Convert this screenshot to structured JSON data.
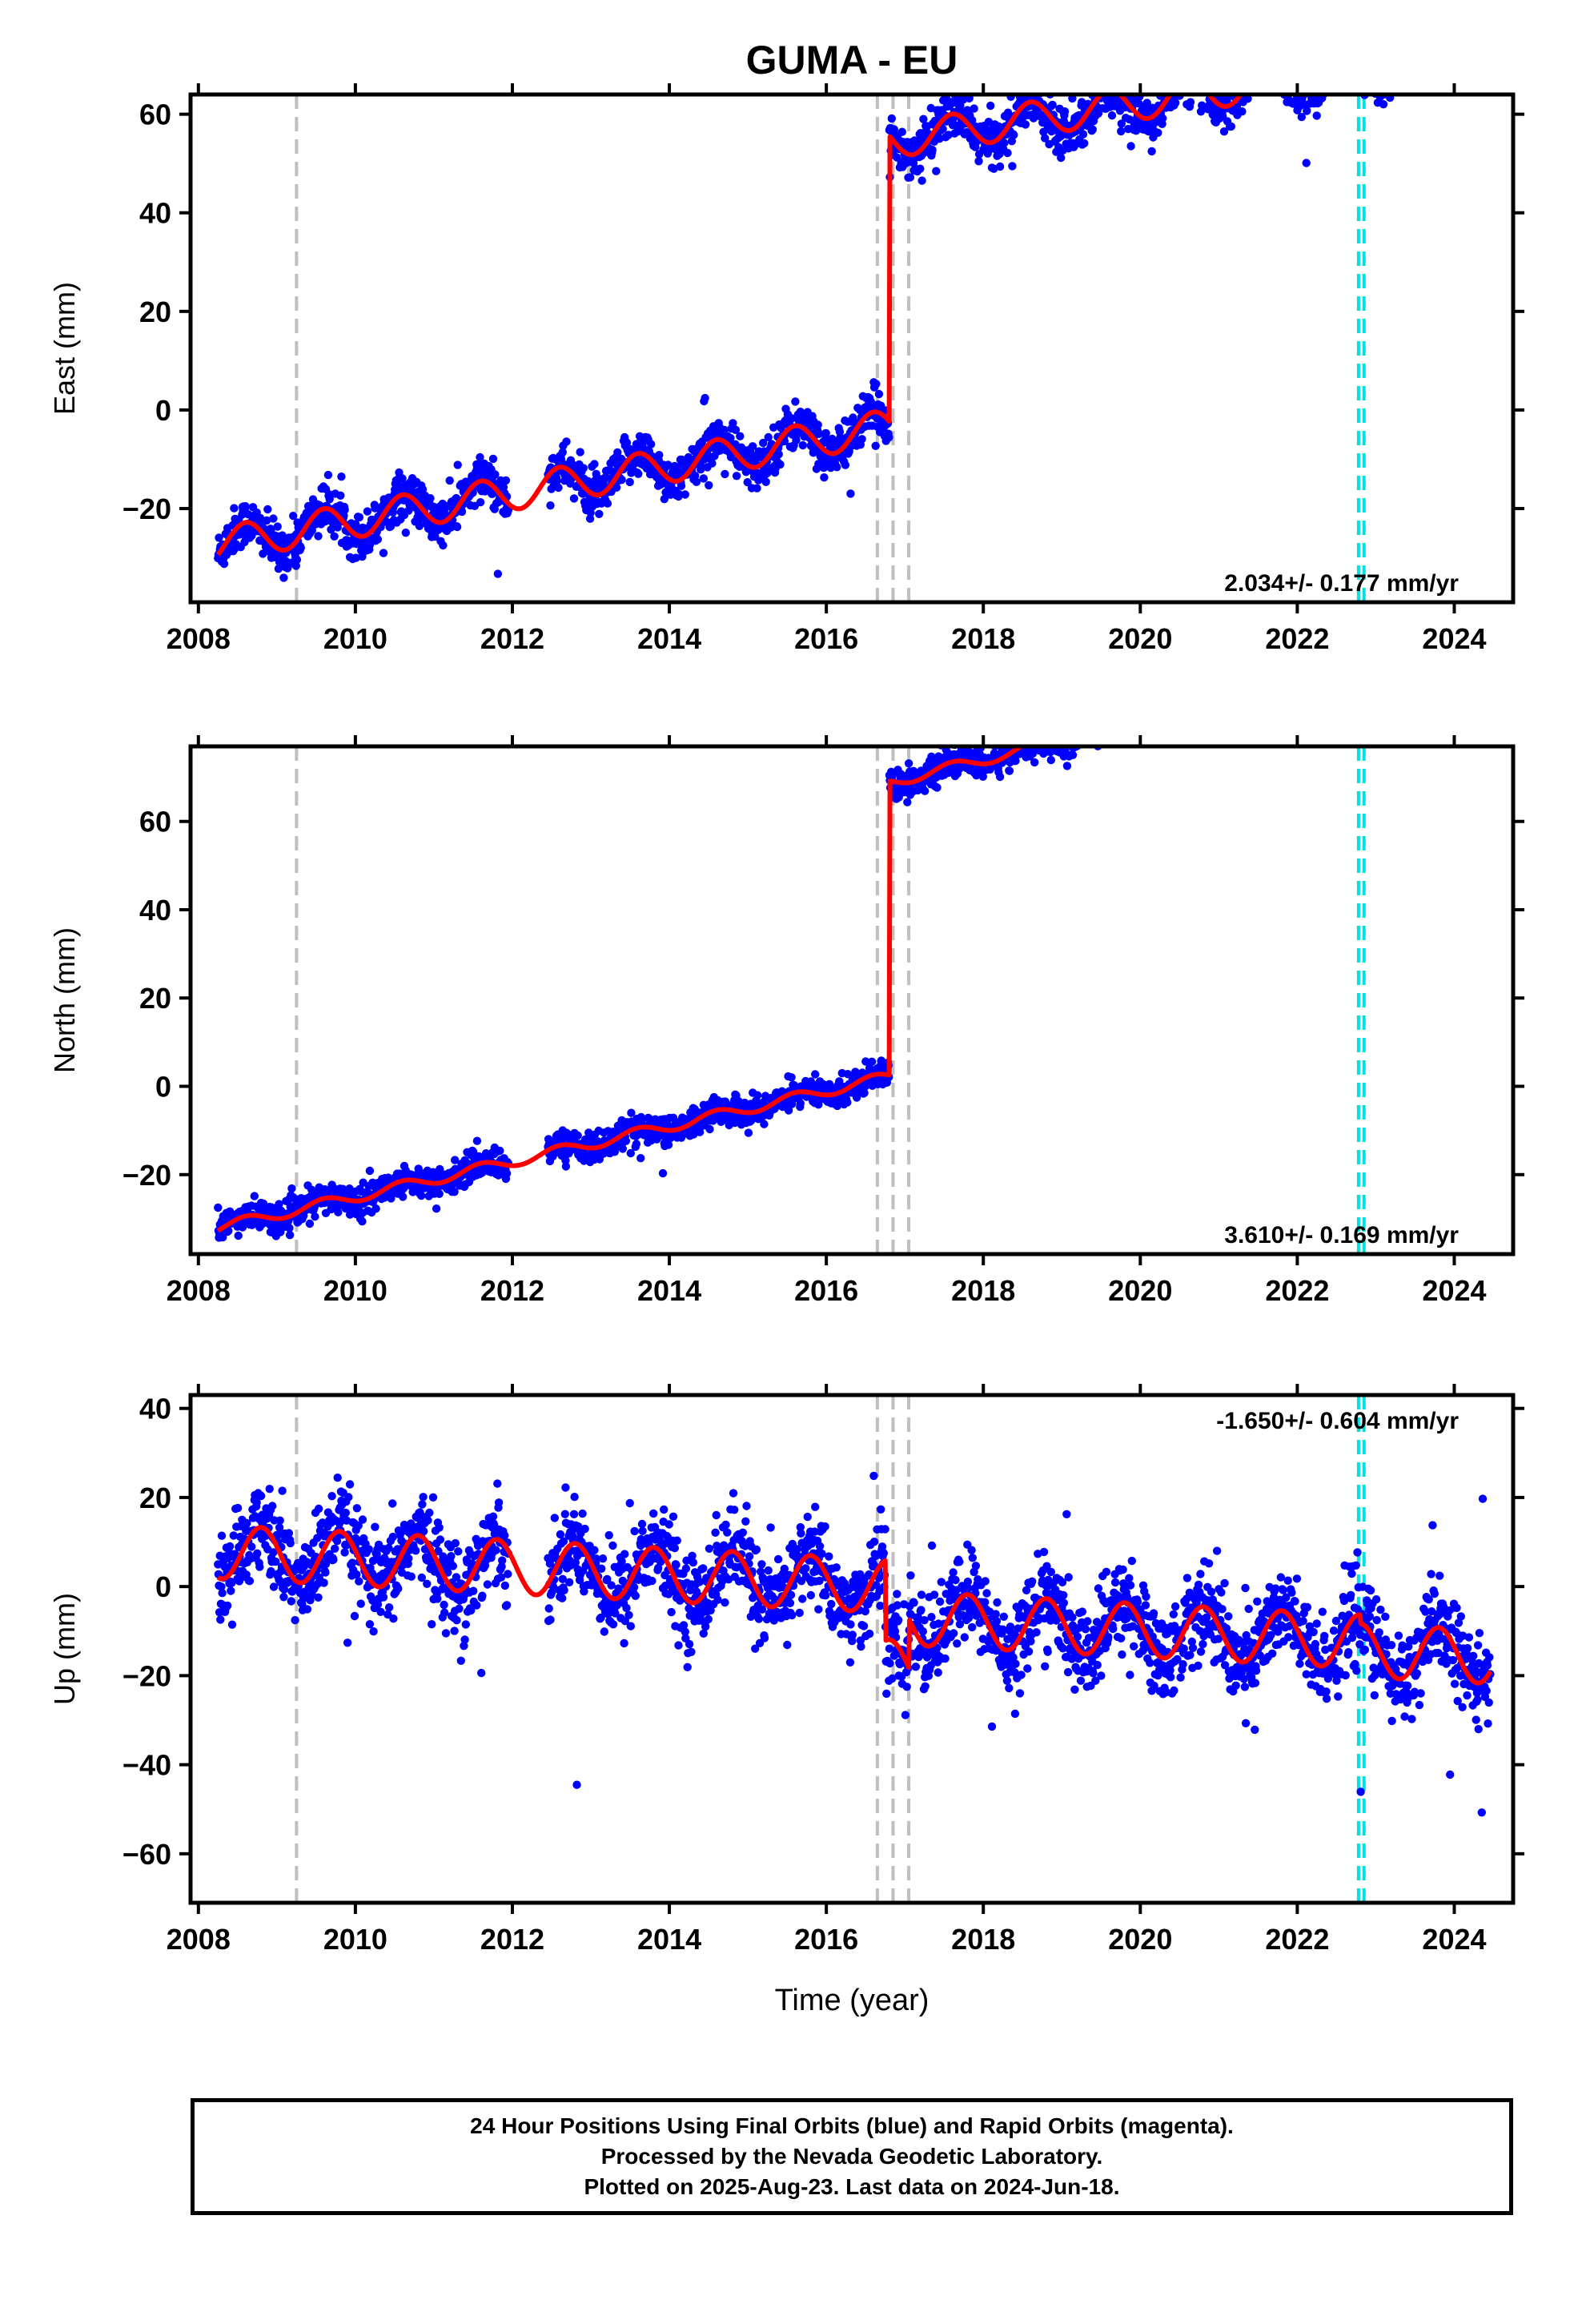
{
  "title": "GUMA - EU",
  "xlabel": "Time (year)",
  "colors": {
    "points": "#0000ff",
    "model": "#ff0000",
    "event_gray": "#bfbfbf",
    "event_cyan": "#00e0e0"
  },
  "chart_data": [
    {
      "type": "scatter",
      "panel": "east",
      "ylabel": "East (mm)",
      "rate_label": "2.034+/- 0.177 mm/yr",
      "xlim": [
        2007.9,
        2024.75
      ],
      "ylim": [
        -39,
        64
      ],
      "xticks": [
        2008,
        2010,
        2012,
        2014,
        2016,
        2018,
        2020,
        2022,
        2024
      ],
      "yticks": [
        -20,
        0,
        20,
        40,
        60
      ],
      "events_gray": [
        2009.25,
        2016.65,
        2016.85,
        2017.05
      ],
      "events_cyan": [
        2022.78,
        2022.85
      ],
      "gap": [
        2011.95,
        2012.45
      ],
      "model_segments": [
        {
          "t0": 2008.0,
          "t1": 2016.8,
          "offset": -28.0,
          "rate": 2.8
        },
        {
          "t0": 2016.8,
          "t1": 2022.8,
          "offset": 33.0,
          "rate": 2.45
        },
        {
          "t0": 2022.8,
          "t1": 2024.5,
          "offset": 33.5,
          "rate": 2.45
        }
      ],
      "seasonal_amp": 3.5,
      "noise": 2.3
    },
    {
      "type": "scatter",
      "panel": "north",
      "ylabel": "North (mm)",
      "rate_label": "3.610+/- 0.169 mm/yr",
      "xlim": [
        2007.9,
        2024.75
      ],
      "ylim": [
        -38,
        77
      ],
      "xticks": [
        2008,
        2010,
        2012,
        2014,
        2016,
        2018,
        2020,
        2022,
        2024
      ],
      "yticks": [
        -20,
        0,
        20,
        40,
        60
      ],
      "events_gray": [
        2009.25,
        2016.65,
        2016.85,
        2017.05
      ],
      "events_cyan": [
        2022.78,
        2022.85
      ],
      "gap": [
        2011.95,
        2012.45
      ],
      "model_segments": [
        {
          "t0": 2008.0,
          "t1": 2016.8,
          "offset": -33.0,
          "rate": 4.0
        },
        {
          "t0": 2016.8,
          "t1": 2022.8,
          "offset": 31.0,
          "rate": 4.3
        },
        {
          "t0": 2022.8,
          "t1": 2024.5,
          "offset": 32.5,
          "rate": 4.3
        }
      ],
      "seasonal_amp": 1.2,
      "noise": 1.6
    },
    {
      "type": "scatter",
      "panel": "up",
      "ylabel": "Up (mm)",
      "rate_label": "-1.650+/- 0.604 mm/yr",
      "xlim": [
        2007.9,
        2024.75
      ],
      "ylim": [
        -71,
        43
      ],
      "xticks": [
        2008,
        2010,
        2012,
        2014,
        2016,
        2018,
        2020,
        2022,
        2024
      ],
      "yticks": [
        -60,
        -40,
        -20,
        0,
        20,
        40
      ],
      "events_gray": [
        2009.25,
        2016.65,
        2016.85,
        2017.05
      ],
      "events_cyan": [
        2022.78,
        2022.85
      ],
      "gap": [
        2011.95,
        2012.45
      ],
      "model_segments": [
        {
          "t0": 2008.0,
          "t1": 2016.75,
          "offset": 8.0,
          "rate": -0.9
        },
        {
          "t0": 2016.75,
          "t1": 2017.05,
          "offset": -10.0,
          "rate": -0.9
        },
        {
          "t0": 2017.05,
          "t1": 2022.8,
          "offset": 1.0,
          "rate": -0.9
        },
        {
          "t0": 2022.8,
          "t1": 2024.5,
          "offset": -1.0,
          "rate": -0.9
        }
      ],
      "seasonal_amp": 6.0,
      "noise": 5.0
    }
  ],
  "footer": {
    "line1": "24 Hour Positions Using Final Orbits (blue) and Rapid Orbits (magenta).",
    "line2": "Processed by the Nevada Geodetic Laboratory.",
    "line3": "Plotted on 2025-Aug-23. Last data on 2024-Jun-18."
  }
}
